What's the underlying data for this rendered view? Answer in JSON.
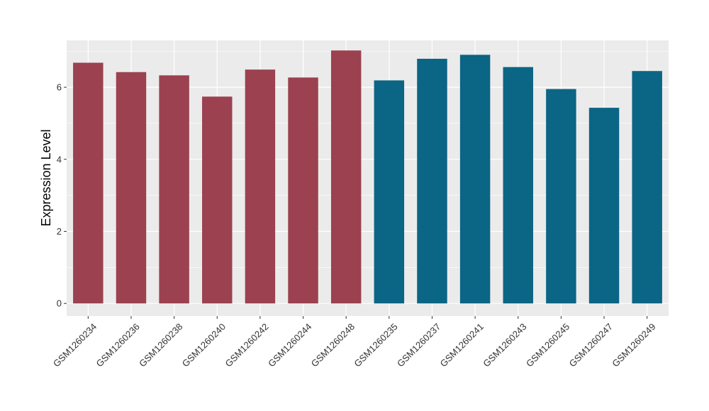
{
  "chart_data": {
    "type": "bar",
    "title": "",
    "xlabel": "",
    "ylabel": "Expression Level",
    "ylim": [
      -0.35,
      7.3
    ],
    "yticks": [
      0,
      2,
      4,
      6
    ],
    "grid": true,
    "legend": "none",
    "categories": [
      "GSM1260234",
      "GSM1260236",
      "GSM1260238",
      "GSM1260240",
      "GSM1260242",
      "GSM1260244",
      "GSM1260248",
      "GSM1260235",
      "GSM1260237",
      "GSM1260241",
      "GSM1260243",
      "GSM1260245",
      "GSM1260247",
      "GSM1260249"
    ],
    "values": [
      6.68,
      6.42,
      6.33,
      5.74,
      6.49,
      6.27,
      7.02,
      6.19,
      6.79,
      6.9,
      6.56,
      5.95,
      5.43,
      6.45
    ],
    "groups": [
      0,
      0,
      0,
      0,
      0,
      0,
      0,
      1,
      1,
      1,
      1,
      1,
      1,
      1
    ],
    "group_colors": [
      "#9b4150",
      "#0b6584"
    ],
    "panel_background": "#ebebeb",
    "grid_color": "#ffffff"
  }
}
